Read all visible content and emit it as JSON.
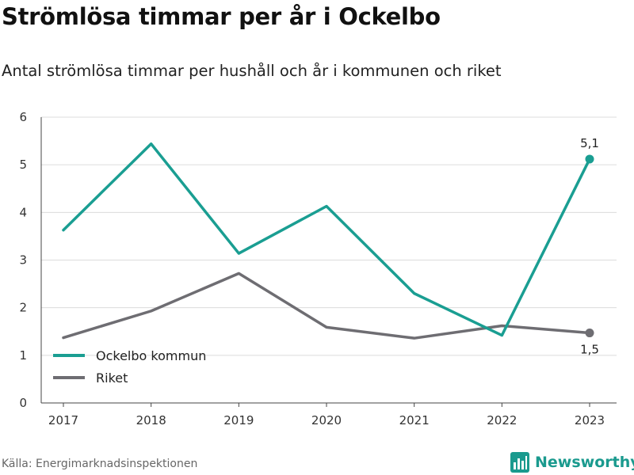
{
  "header": {
    "title": "Strömlösa timmar per år i Ockelbo",
    "subtitle": "Antal strömlösa timmar per hushåll och år i kommunen och riket"
  },
  "footer": {
    "source": "Källa: Energimarknadsinspektionen",
    "brand": "Newsworthy",
    "brand_icon": "bar-chart-logo-icon"
  },
  "chart_data": {
    "type": "line",
    "title": "Strömlösa timmar per år i Ockelbo",
    "subtitle": "Antal strömlösa timmar per hushåll och år i kommunen och riket",
    "xlabel": "",
    "ylabel": "",
    "x": [
      "2017",
      "2018",
      "2019",
      "2020",
      "2021",
      "2022",
      "2023"
    ],
    "ylim": [
      0,
      6
    ],
    "yticks": [
      "0",
      "1",
      "2",
      "3",
      "4",
      "5",
      "6"
    ],
    "grid": true,
    "legend_position": "bottom-left",
    "series": [
      {
        "name": "Ockelbo kommun",
        "color": "#1a9e92",
        "values": [
          3.63,
          5.44,
          3.14,
          4.13,
          2.3,
          1.42,
          5.12
        ],
        "end_label": "5,1"
      },
      {
        "name": "Riket",
        "color": "#6e6d72",
        "values": [
          1.37,
          1.93,
          2.72,
          1.59,
          1.36,
          1.62,
          1.47
        ],
        "end_label": "1,5"
      }
    ]
  }
}
